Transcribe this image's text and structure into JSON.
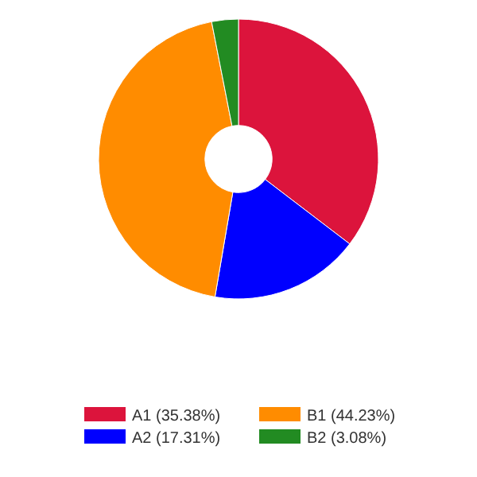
{
  "chart_data": {
    "type": "donut",
    "categories": [
      "A1 (35.38%)",
      "A2 (17.31%)",
      "B1 (44.23%)",
      "B2 (3.08%)"
    ],
    "values": [
      35.38,
      17.31,
      44.23,
      3.08
    ],
    "colors": [
      "#dc143c",
      "#0000ff",
      "#ff8c00",
      "#228b22"
    ],
    "legend": "bottom"
  }
}
